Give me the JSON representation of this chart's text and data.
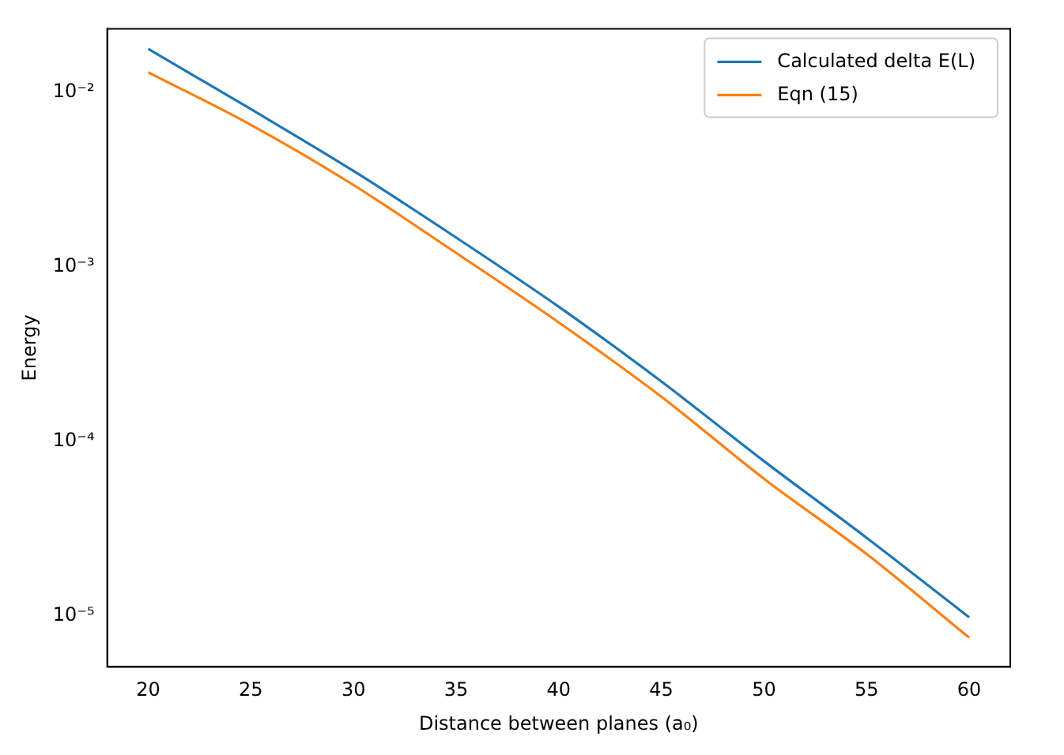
{
  "chart_data": {
    "type": "line",
    "xlabel": "Distance between planes (a₀)",
    "ylabel": "Energy",
    "log": "y",
    "legend": "top right",
    "grid": false,
    "xlim": [
      18,
      62
    ],
    "xticks": [
      20,
      25,
      30,
      35,
      40,
      45,
      50,
      55,
      60
    ],
    "ylim": [
      5.1e-06,
      0.0231
    ],
    "yticks": [
      {
        "value": 1e-05,
        "label": "10⁻⁵"
      },
      {
        "value": 0.0001,
        "label": "10⁻⁴"
      },
      {
        "value": 0.001,
        "label": "10⁻³"
      },
      {
        "value": 0.01,
        "label": "10⁻²"
      }
    ],
    "x": [
      20,
      25,
      30,
      35,
      40,
      45,
      50,
      55,
      60
    ],
    "series": [
      {
        "name": "Calculated delta E(L)",
        "color": "#1f77b4",
        "values": [
          0.0177,
          0.008,
          0.00354,
          0.00147,
          0.00059,
          0.00022,
          7.7e-05,
          2.8e-05,
          9.8e-06
        ]
      },
      {
        "name": "Eqn (15)",
        "color": "#ff7f0e",
        "values": [
          0.013,
          0.0065,
          0.00294,
          0.0012,
          0.00048,
          0.00018,
          6.1e-05,
          2.26e-05,
          7.5e-06
        ]
      }
    ]
  }
}
